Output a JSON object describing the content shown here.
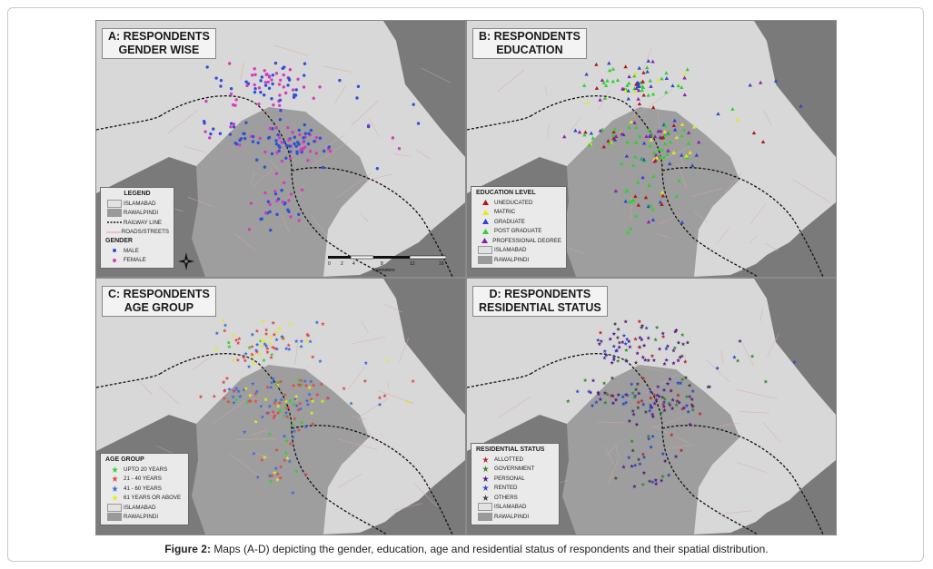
{
  "panels": [
    {
      "id": "A",
      "title_line1": "A: RESPONDENTS",
      "title_line2": "GENDER WISE",
      "legend_title": "LEGEND",
      "legend_rows": [
        {
          "label": "ISLAMABAD",
          "kind": "swatch",
          "color": "#e2e2e2"
        },
        {
          "label": "RAWALPINDI",
          "kind": "swatch",
          "color": "#9a9a9a"
        },
        {
          "label": "RAILWAY LINE",
          "kind": "rail",
          "color": "#111111"
        },
        {
          "label": "ROADS/STREETS",
          "kind": "road",
          "color": "#d9a0a0"
        }
      ],
      "legend_subtitle": "GENDER",
      "legend_sub_rows": [
        {
          "label": "MALE",
          "kind": "dot",
          "color": "#2f4fd8"
        },
        {
          "label": "FEMALE",
          "kind": "dot",
          "color": "#d63bbf"
        }
      ],
      "scale_ticks": [
        "0",
        "2",
        "4",
        "8",
        "12",
        "16"
      ],
      "scale_unit": "Kilometers"
    },
    {
      "id": "B",
      "title_line1": "B: RESPONDENTS",
      "title_line2": "EDUCATION",
      "legend_title": "EDUCATION LEVEL",
      "legend_rows": [
        {
          "label": "UNEDUCATED",
          "kind": "tri",
          "color": "#b01818"
        },
        {
          "label": "MATRIC",
          "kind": "tri",
          "color": "#e8e81a"
        },
        {
          "label": "GRADUATE",
          "kind": "tri",
          "color": "#2a47c9"
        },
        {
          "label": "POST GRADUATE",
          "kind": "tri",
          "color": "#2fd02f"
        },
        {
          "label": "PROFESSIONAL DEGREE",
          "kind": "tri",
          "color": "#8b1fb0"
        },
        {
          "label": "ISLAMABAD",
          "kind": "swatch",
          "color": "#e2e2e2"
        },
        {
          "label": "RAWALPINDI",
          "kind": "swatch",
          "color": "#9a9a9a"
        }
      ]
    },
    {
      "id": "C",
      "title_line1": "C: RESPONDENTS",
      "title_line2": "AGE GROUP",
      "legend_title": "AGE GROUP",
      "legend_rows": [
        {
          "label": "UPTO 20 YEARS",
          "kind": "star",
          "color": "#2fd02f"
        },
        {
          "label": "21 - 40 YEARS",
          "kind": "star",
          "color": "#e04848"
        },
        {
          "label": "41 - 60 YEARS",
          "kind": "star",
          "color": "#3a6be0"
        },
        {
          "label": "61 YEARS OR ABOVE",
          "kind": "star",
          "color": "#e8e81a"
        },
        {
          "label": "ISLAMABAD",
          "kind": "swatch",
          "color": "#e2e2e2"
        },
        {
          "label": "RAWALPINDI",
          "kind": "swatch",
          "color": "#9a9a9a"
        }
      ]
    },
    {
      "id": "D",
      "title_line1": "D: RESPONDENTS",
      "title_line2": "RESIDENTIAL STATUS",
      "legend_title": "RESIDENTIAL STATUS",
      "legend_rows": [
        {
          "label": "ALLOTTED",
          "kind": "star",
          "color": "#c02828"
        },
        {
          "label": "GOVERNMENT",
          "kind": "star",
          "color": "#2e8b2e"
        },
        {
          "label": "PERSONAL",
          "kind": "star",
          "color": "#5a1a8a"
        },
        {
          "label": "RENTED",
          "kind": "star",
          "color": "#2a47c9"
        },
        {
          "label": "OTHERS",
          "kind": "star",
          "color": "#444444"
        },
        {
          "label": "ISLAMABAD",
          "kind": "swatch",
          "color": "#e2e2e2"
        },
        {
          "label": "RAWALPINDI",
          "kind": "swatch",
          "color": "#9a9a9a"
        }
      ]
    }
  ],
  "caption_label": "Figure 2:",
  "caption_text": "Maps (A-D) depicting the gender, education, age and residential status of respondents and their spatial distribution.",
  "colors": {
    "islamabad": "#d8d8d8",
    "rawalpindi": "#9e9e9e",
    "outside": "#7a7a7a",
    "railway": "#111111",
    "roads": "#d8a8a8"
  },
  "north_icon": "north-arrow-icon"
}
